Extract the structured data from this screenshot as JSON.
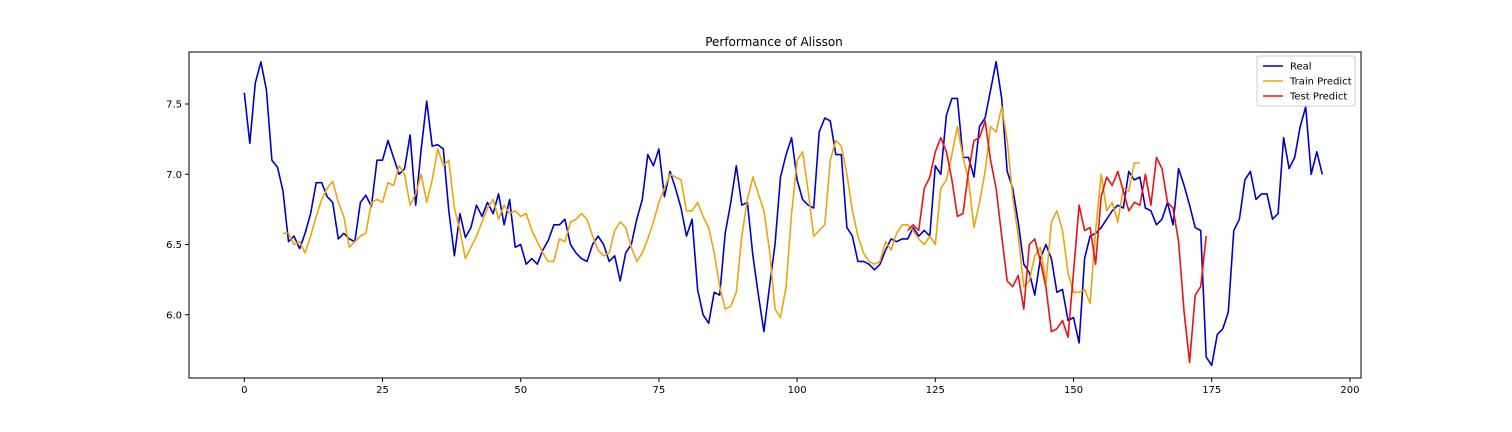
{
  "chart_data": {
    "type": "line",
    "title": "Performance of Alisson",
    "xlabel": "",
    "ylabel": "",
    "xlim": [
      -10,
      202
    ],
    "ylim": [
      5.55,
      7.87
    ],
    "x_ticks": [
      0,
      25,
      50,
      75,
      100,
      125,
      150,
      175,
      200
    ],
    "y_ticks": [
      6.0,
      6.5,
      7.0,
      7.5
    ],
    "y_tick_labels": [
      "6.0",
      "6.5",
      "7.0",
      "7.5"
    ],
    "grid": false,
    "legend_position": "top-right",
    "series": [
      {
        "name": "Real",
        "color": "#0000cc",
        "x_start": 0,
        "values": [
          7.58,
          7.22,
          7.65,
          7.8,
          7.6,
          7.1,
          7.05,
          6.88,
          6.52,
          6.56,
          6.47,
          6.58,
          6.72,
          6.94,
          6.94,
          6.84,
          6.8,
          6.54,
          6.58,
          6.54,
          6.52,
          6.8,
          6.85,
          6.77,
          7.1,
          7.1,
          7.24,
          7.12,
          7.0,
          7.04,
          7.28,
          6.78,
          7.18,
          7.52,
          7.2,
          7.21,
          7.18,
          6.74,
          6.42,
          6.72,
          6.55,
          6.62,
          6.78,
          6.7,
          6.8,
          6.72,
          6.86,
          6.64,
          6.82,
          6.48,
          6.5,
          6.36,
          6.4,
          6.36,
          6.46,
          6.53,
          6.64,
          6.64,
          6.68,
          6.5,
          6.44,
          6.4,
          6.38,
          6.5,
          6.56,
          6.5,
          6.38,
          6.42,
          6.24,
          6.44,
          6.5,
          6.68,
          6.82,
          7.14,
          7.06,
          7.18,
          6.84,
          7.02,
          6.9,
          6.76,
          6.56,
          6.68,
          6.18,
          6.0,
          5.94,
          6.16,
          6.14,
          6.58,
          6.8,
          7.06,
          6.78,
          6.8,
          6.42,
          6.14,
          5.88,
          6.2,
          6.5,
          6.98,
          7.14,
          7.26,
          6.96,
          6.82,
          6.78,
          6.76,
          7.3,
          7.4,
          7.38,
          7.14,
          7.14,
          6.62,
          6.56,
          6.38,
          6.38,
          6.36,
          6.32,
          6.36,
          6.46,
          6.54,
          6.52,
          6.54,
          6.54,
          6.62,
          6.56,
          6.6,
          6.56,
          7.06,
          7.0,
          7.42,
          7.54,
          7.54,
          7.12,
          7.12,
          6.98,
          7.34,
          7.4,
          7.6,
          7.8,
          7.54,
          7.02,
          6.9,
          6.66,
          6.36,
          6.3,
          6.14,
          6.4,
          6.5,
          6.4,
          6.16,
          6.18,
          5.96,
          5.98,
          5.8,
          6.4,
          6.56,
          6.58,
          6.62,
          6.68,
          6.74,
          6.78,
          6.76,
          7.02,
          6.96,
          6.98,
          6.76,
          6.74,
          6.64,
          6.68,
          6.8,
          6.64,
          7.04,
          6.92,
          6.78,
          6.62,
          6.6,
          5.7,
          5.64,
          5.86,
          5.9,
          6.02,
          6.6,
          6.68,
          6.96,
          7.02,
          6.82,
          6.86,
          6.86,
          6.68,
          6.72,
          7.26,
          7.04,
          7.12,
          7.34,
          7.48,
          7.0,
          7.16,
          7.0
        ]
      },
      {
        "name": "Train Predict",
        "color": "#f0a30a",
        "x_start": 7,
        "values": [
          6.58,
          6.58,
          6.5,
          6.52,
          6.44,
          6.56,
          6.7,
          6.82,
          6.9,
          6.95,
          6.8,
          6.7,
          6.48,
          6.52,
          6.56,
          6.58,
          6.8,
          6.82,
          6.8,
          6.94,
          6.92,
          7.06,
          7.0,
          6.78,
          6.86,
          7.0,
          6.8,
          6.96,
          7.18,
          7.06,
          7.1,
          6.76,
          6.6,
          6.4,
          6.48,
          6.56,
          6.66,
          6.76,
          6.82,
          6.68,
          6.78,
          6.72,
          6.74,
          6.7,
          6.72,
          6.6,
          6.52,
          6.44,
          6.38,
          6.38,
          6.54,
          6.52,
          6.66,
          6.68,
          6.72,
          6.68,
          6.56,
          6.46,
          6.42,
          6.44,
          6.6,
          6.66,
          6.62,
          6.48,
          6.38,
          6.44,
          6.54,
          6.66,
          6.8,
          6.9,
          7.0,
          6.98,
          6.96,
          6.74,
          6.74,
          6.8,
          6.7,
          6.62,
          6.44,
          6.2,
          6.04,
          6.06,
          6.16,
          6.56,
          6.82,
          6.98,
          6.86,
          6.74,
          6.46,
          6.04,
          5.98,
          6.2,
          6.72,
          7.1,
          7.16,
          6.88,
          6.56,
          6.6,
          6.64,
          7.1,
          7.24,
          7.2,
          7.0,
          6.74,
          6.56,
          6.44,
          6.38,
          6.36,
          6.38,
          6.52,
          6.46,
          6.58,
          6.64,
          6.64,
          6.6,
          6.54,
          6.5,
          6.56,
          6.5,
          6.9,
          6.96,
          7.14,
          7.34,
          7.12,
          6.96,
          6.62,
          6.8,
          7.02,
          7.34,
          7.3,
          7.48,
          7.24,
          6.84,
          6.56,
          6.2,
          6.24,
          6.42,
          6.48,
          6.22,
          6.66,
          6.74,
          6.6,
          6.3,
          6.16,
          6.16,
          6.18,
          6.08,
          6.6,
          7.0,
          6.74,
          6.8,
          6.66,
          6.9,
          6.88,
          7.08,
          7.08
        ]
      },
      {
        "name": "Test Predict",
        "color": "#ee1111",
        "x_start": 120,
        "values": [
          6.6,
          6.64,
          6.6,
          6.9,
          6.98,
          7.16,
          7.26,
          7.16,
          6.96,
          6.7,
          6.72,
          7.02,
          7.24,
          7.26,
          7.38,
          7.1,
          6.9,
          6.56,
          6.24,
          6.2,
          6.28,
          6.04,
          6.5,
          6.54,
          6.38,
          6.2,
          5.88,
          5.9,
          5.96,
          5.84,
          6.3,
          6.78,
          6.6,
          6.62,
          6.36,
          6.84,
          6.98,
          6.92,
          7.02,
          6.88,
          6.74,
          6.8,
          6.78,
          7.0,
          6.78,
          7.12,
          7.04,
          6.8,
          6.76,
          6.52,
          6.02,
          5.66,
          6.14,
          6.2,
          6.56
        ]
      }
    ]
  }
}
